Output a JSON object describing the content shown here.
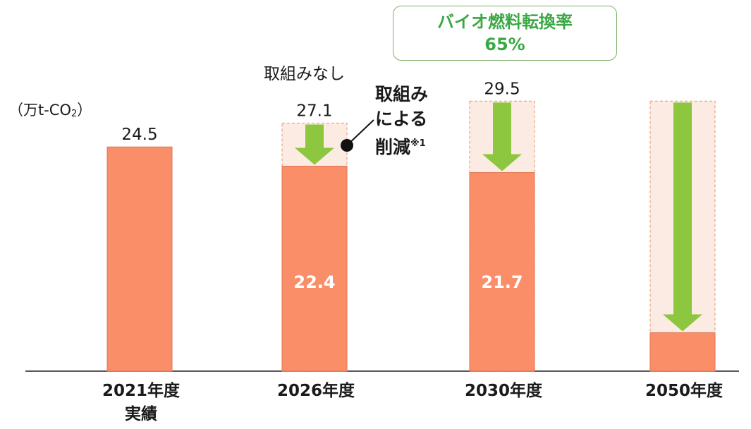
{
  "unit_label": "（万t-CO",
  "unit_sub": "2",
  "unit_close": "）",
  "callout": {
    "line1": "バイオ燃料転換率",
    "line2": "65%"
  },
  "annotations": {
    "no_measures": "取組みなし",
    "reduction_line1": "取組み",
    "reduction_line2": "による",
    "reduction_line3": "削減",
    "reduction_note": "※1"
  },
  "colors": {
    "bar": "#f98e68",
    "reduction_fill": "#fcebe3",
    "arrow": "#8dc63f",
    "callout_text": "#3aa843"
  },
  "chart_data": {
    "type": "bar",
    "categories": [
      {
        "line1": "2021年度",
        "line2": "実績"
      },
      {
        "line1": "2026年度",
        "line2": ""
      },
      {
        "line1": "2030年度",
        "line2": ""
      },
      {
        "line1": "2050年度",
        "line2": ""
      }
    ],
    "series": [
      {
        "values": [
          24.5,
          22.4,
          21.7,
          4.2
        ]
      },
      {
        "values": [
          null,
          27.1,
          29.5,
          29.5
        ]
      }
    ],
    "labels": {
      "top": [
        "24.5",
        "27.1",
        "29.5",
        ""
      ],
      "inside": [
        "",
        "22.4",
        "21.7",
        ""
      ]
    },
    "ylim": [
      0,
      32
    ]
  }
}
